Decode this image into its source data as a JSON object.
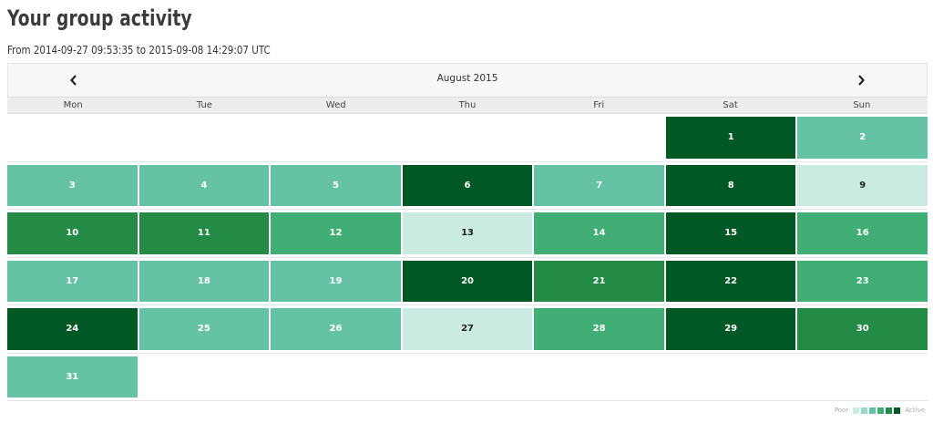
{
  "page": {
    "title": "Your group activity",
    "date_range": "From 2014-09-27 09:53:35 to 2015-09-08 14:29:07 UTC"
  },
  "calendar": {
    "month": "August 2015",
    "prev_icon": "chevron-left-icon",
    "next_icon": "chevron-right-icon",
    "weekdays": [
      "Mon",
      "Tue",
      "Wed",
      "Thu",
      "Fri",
      "Sat",
      "Sun"
    ],
    "weeks": [
      [
        null,
        null,
        null,
        null,
        null,
        {
          "day": "1",
          "level": 5
        },
        {
          "day": "2",
          "level": 2
        }
      ],
      [
        {
          "day": "3",
          "level": 2
        },
        {
          "day": "4",
          "level": 2
        },
        {
          "day": "5",
          "level": 2
        },
        {
          "day": "6",
          "level": 5
        },
        {
          "day": "7",
          "level": 2
        },
        {
          "day": "8",
          "level": 5
        },
        {
          "day": "9",
          "level": 1
        }
      ],
      [
        {
          "day": "10",
          "level": 4
        },
        {
          "day": "11",
          "level": 4
        },
        {
          "day": "12",
          "level": 3
        },
        {
          "day": "13",
          "level": 1
        },
        {
          "day": "14",
          "level": 3
        },
        {
          "day": "15",
          "level": 5
        },
        {
          "day": "16",
          "level": 3
        }
      ],
      [
        {
          "day": "17",
          "level": 2
        },
        {
          "day": "18",
          "level": 2
        },
        {
          "day": "19",
          "level": 2
        },
        {
          "day": "20",
          "level": 5
        },
        {
          "day": "21",
          "level": 4
        },
        {
          "day": "22",
          "level": 5
        },
        {
          "day": "23",
          "level": 3
        }
      ],
      [
        {
          "day": "24",
          "level": 5
        },
        {
          "day": "25",
          "level": 2
        },
        {
          "day": "26",
          "level": 2
        },
        {
          "day": "27",
          "level": 1
        },
        {
          "day": "28",
          "level": 3
        },
        {
          "day": "29",
          "level": 5
        },
        {
          "day": "30",
          "level": 4
        }
      ],
      [
        {
          "day": "31",
          "level": 2
        },
        null,
        null,
        null,
        null,
        null,
        null
      ]
    ]
  },
  "legend": {
    "low_label": "Poor",
    "high_label": "Active",
    "colors": [
      "#c9ebe2",
      "#99d8c9",
      "#66c2a4",
      "#41ae76",
      "#238b45",
      "#005824"
    ]
  }
}
